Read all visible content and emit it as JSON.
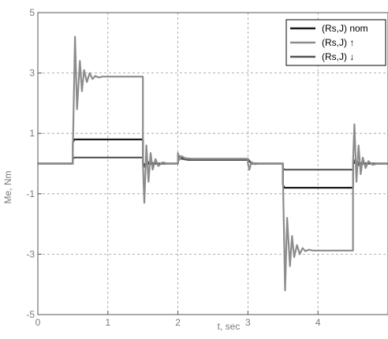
{
  "chart_data": {
    "type": "line",
    "title": "",
    "xlabel": "t, sec",
    "ylabel": "Me,  Nm",
    "xlim": [
      0,
      5
    ],
    "ylim": [
      -5,
      5
    ],
    "x_ticks": [
      0,
      1,
      2,
      3,
      4
    ],
    "x_tick_labels": [
      "0",
      "1",
      "2",
      "3",
      "4"
    ],
    "y_ticks": [
      5,
      3,
      1,
      -1,
      -3,
      -5
    ],
    "y_tick_labels": [
      "5",
      "3",
      "1",
      "-1",
      "-3",
      "-5"
    ],
    "grid": true,
    "grid_style": "dashed",
    "legend_position": "top-right",
    "series": [
      {
        "name": "(Rs,J) nom",
        "color": "#1a1a1a",
        "x": [
          0,
          0.5,
          0.5,
          0.52,
          1.5,
          1.5,
          1.55,
          1.6,
          1.7,
          2.0,
          2.0,
          2.1,
          2.2,
          3.0,
          3.05,
          3.5,
          3.5,
          3.52,
          4.5,
          4.5,
          4.55,
          4.6,
          5.0
        ],
        "values": [
          0,
          0,
          0.7,
          0.8,
          0.8,
          0.0,
          -0.05,
          0.02,
          0.0,
          0.0,
          0.18,
          0.17,
          0.15,
          0.15,
          0.0,
          0.0,
          -0.7,
          -0.8,
          -0.8,
          0.0,
          0.06,
          0.0,
          0.0
        ]
      },
      {
        "name": "(Rs,J) ↑",
        "color": "#8c8c8c",
        "x": [
          0,
          0.5,
          0.5,
          0.53,
          0.56,
          0.6,
          0.63,
          0.66,
          0.7,
          0.74,
          0.78,
          0.82,
          0.87,
          0.92,
          1.0,
          1.5,
          1.5,
          1.52,
          1.55,
          1.58,
          1.61,
          1.64,
          1.68,
          1.72,
          1.78,
          1.85,
          2.0,
          2.0,
          2.02,
          2.05,
          2.1,
          2.2,
          3.0,
          3.0,
          3.02,
          3.05,
          3.1,
          3.15,
          3.5,
          3.5,
          3.53,
          3.56,
          3.6,
          3.63,
          3.66,
          3.7,
          3.74,
          3.78,
          3.82,
          3.87,
          3.92,
          4.0,
          4.5,
          4.5,
          4.52,
          4.55,
          4.58,
          4.61,
          4.64,
          4.68,
          4.72,
          4.78,
          4.85,
          5.0
        ],
        "values": [
          0,
          0,
          0.5,
          4.2,
          1.8,
          3.4,
          2.4,
          3.1,
          2.7,
          3.0,
          2.8,
          2.9,
          2.85,
          2.88,
          2.88,
          2.88,
          0.0,
          -1.3,
          0.6,
          -0.6,
          0.35,
          -0.2,
          0.15,
          -0.08,
          0.04,
          0.0,
          0.0,
          0.35,
          0.12,
          0.25,
          0.18,
          0.16,
          0.16,
          0.0,
          -0.2,
          0.05,
          -0.02,
          0.0,
          0.0,
          -0.5,
          -4.2,
          -1.8,
          -3.4,
          -2.4,
          -3.1,
          -2.7,
          -3.0,
          -2.8,
          -2.9,
          -2.85,
          -2.88,
          -2.88,
          -2.88,
          0.0,
          1.3,
          -0.6,
          0.6,
          -0.35,
          0.2,
          -0.15,
          0.08,
          -0.04,
          0.0,
          0.0
        ]
      },
      {
        "name": "(Rs,J) ↓",
        "color": "#555555",
        "x": [
          0,
          0.5,
          0.5,
          0.52,
          1.5,
          1.5,
          1.53,
          1.57,
          1.62,
          1.7,
          2.0,
          2.0,
          2.05,
          2.15,
          3.0,
          3.05,
          3.5,
          3.5,
          3.52,
          4.5,
          4.5,
          4.53,
          4.57,
          4.62,
          4.7,
          5.0
        ],
        "values": [
          0,
          0,
          0.15,
          0.2,
          0.2,
          0.0,
          -0.12,
          0.06,
          -0.02,
          0.0,
          0.0,
          0.3,
          0.16,
          0.12,
          0.12,
          0.0,
          0.0,
          -0.15,
          -0.2,
          -0.2,
          0.0,
          0.12,
          -0.06,
          0.02,
          0.0,
          0.0
        ]
      }
    ]
  }
}
